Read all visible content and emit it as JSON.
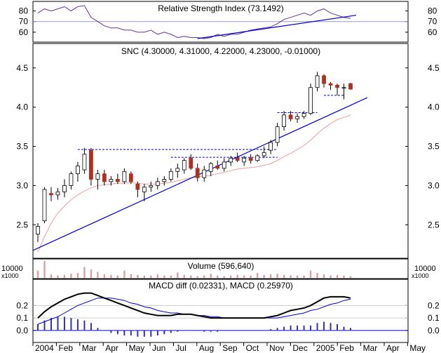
{
  "chart_data": {
    "type": "candlestick",
    "months": [
      "2004",
      "Feb",
      "Mar",
      "Apr",
      "May",
      "Jun",
      "Jul",
      "Aug",
      "Sep",
      "Oct",
      "Nov",
      "Dec",
      "2005",
      "Feb",
      "Mar",
      "Apr",
      "May"
    ],
    "price": {
      "title": "SNC (4.30000, 4.31000, 4.22000, 4.23000, -0.01000)",
      "ylim": [
        2.1,
        4.65
      ],
      "yticks": [
        2.5,
        3.0,
        3.5,
        4.0,
        4.5
      ],
      "ytick_labels": [
        "2.5",
        "3.0",
        "3.5",
        "4.0",
        "4.5"
      ],
      "candles": [
        [
          2.38,
          2.52,
          2.28,
          2.48
        ],
        [
          2.55,
          2.98,
          2.52,
          2.95
        ],
        [
          2.9,
          2.98,
          2.8,
          2.88
        ],
        [
          2.88,
          2.97,
          2.82,
          2.92
        ],
        [
          2.92,
          3.08,
          2.85,
          3.0
        ],
        [
          3.0,
          3.18,
          2.95,
          3.15
        ],
        [
          3.15,
          3.3,
          3.05,
          3.25
        ],
        [
          3.2,
          3.48,
          3.15,
          3.4
        ],
        [
          3.45,
          3.48,
          3.0,
          3.08
        ],
        [
          3.08,
          3.2,
          2.95,
          3.15
        ],
        [
          3.15,
          3.2,
          3.0,
          3.05
        ],
        [
          3.05,
          3.12,
          3.0,
          3.08
        ],
        [
          3.08,
          3.15,
          3.02,
          3.05
        ],
        [
          3.05,
          3.22,
          3.02,
          3.18
        ],
        [
          3.15,
          3.18,
          3.02,
          3.05
        ],
        [
          3.02,
          3.05,
          2.85,
          2.95
        ],
        [
          2.92,
          3.02,
          2.8,
          2.98
        ],
        [
          2.98,
          3.05,
          2.92,
          3.0
        ],
        [
          3.0,
          3.1,
          2.95,
          3.05
        ],
        [
          3.05,
          3.12,
          3.0,
          3.08
        ],
        [
          3.08,
          3.22,
          3.05,
          3.18
        ],
        [
          3.18,
          3.28,
          3.1,
          3.22
        ],
        [
          3.2,
          3.35,
          3.15,
          3.32
        ],
        [
          3.35,
          3.4,
          3.2,
          3.22
        ],
        [
          3.22,
          3.28,
          3.05,
          3.1
        ],
        [
          3.1,
          3.25,
          3.05,
          3.2
        ],
        [
          3.18,
          3.3,
          3.12,
          3.28
        ],
        [
          3.25,
          3.32,
          3.2,
          3.22
        ],
        [
          3.22,
          3.35,
          3.18,
          3.3
        ],
        [
          3.3,
          3.38,
          3.25,
          3.35
        ],
        [
          3.35,
          3.42,
          3.3,
          3.32
        ],
        [
          3.3,
          3.38,
          3.25,
          3.35
        ],
        [
          3.35,
          3.4,
          3.28,
          3.32
        ],
        [
          3.32,
          3.4,
          3.3,
          3.38
        ],
        [
          3.38,
          3.5,
          3.35,
          3.42
        ],
        [
          3.45,
          3.58,
          3.4,
          3.55
        ],
        [
          3.55,
          3.8,
          3.5,
          3.75
        ],
        [
          3.75,
          3.95,
          3.7,
          3.9
        ],
        [
          3.9,
          3.95,
          3.82,
          3.85
        ],
        [
          3.85,
          3.92,
          3.8,
          3.88
        ],
        [
          3.88,
          3.95,
          3.85,
          3.92
        ],
        [
          3.92,
          4.3,
          3.9,
          4.25
        ],
        [
          4.25,
          4.45,
          4.2,
          4.4
        ],
        [
          4.4,
          4.42,
          4.25,
          4.3
        ],
        [
          4.3,
          4.32,
          4.22,
          4.28
        ],
        [
          4.28,
          4.3,
          4.15,
          4.25
        ],
        [
          4.25,
          4.3,
          4.1,
          4.25
        ],
        [
          4.3,
          4.31,
          4.22,
          4.23
        ]
      ],
      "moving_average": [
        2.15,
        2.35,
        2.52,
        2.65,
        2.74,
        2.82,
        2.88,
        2.93,
        2.97,
        3.0,
        3.01,
        3.02,
        3.03,
        3.03,
        3.04,
        3.03,
        3.02,
        3.02,
        3.02,
        3.03,
        3.04,
        3.06,
        3.08,
        3.1,
        3.11,
        3.12,
        3.13,
        3.15,
        3.17,
        3.19,
        3.21,
        3.22,
        3.23,
        3.24,
        3.26,
        3.28,
        3.32,
        3.37,
        3.41,
        3.46,
        3.51,
        3.58,
        3.66,
        3.73,
        3.79,
        3.84,
        3.87,
        3.9
      ],
      "trendline": [
        [
          0,
          2.2
        ],
        [
          47,
          4.05
        ]
      ],
      "resistance_lines": [
        {
          "from": 6,
          "to": 36,
          "level": 3.46
        },
        {
          "from": 20,
          "to": 36,
          "level": 3.36
        },
        {
          "from": 36,
          "to": 42,
          "level": 3.93
        },
        {
          "from": 43,
          "to": 46,
          "level": 4.15
        }
      ]
    },
    "rsi": {
      "title": "Relative Strength Index (73.1492)",
      "ylim": [
        52,
        87
      ],
      "yticks": [
        60,
        70,
        80
      ],
      "ytick_labels": [
        "60",
        "70",
        "80"
      ],
      "reference_level": 70,
      "values": [
        78,
        82,
        80,
        82,
        84,
        80,
        84,
        85,
        74,
        70,
        66,
        64,
        64,
        62,
        62,
        60,
        60,
        62,
        58,
        60,
        58,
        55,
        56,
        55,
        55,
        54,
        55,
        58,
        56,
        58,
        58,
        60,
        62,
        63,
        64,
        65,
        68,
        72,
        74,
        76,
        78,
        76,
        80,
        82,
        78,
        76,
        74,
        73
      ],
      "trendline": [
        [
          24,
          54
        ],
        [
          47,
          76
        ]
      ]
    },
    "volume": {
      "title": "Volume (596,640)",
      "unit_label": "x1000",
      "tick_label": "10000",
      "values": [
        12,
        28,
        6,
        4,
        5,
        7,
        8,
        18,
        14,
        10,
        6,
        5,
        4,
        12,
        6,
        5,
        4,
        4,
        6,
        4,
        4,
        9,
        5,
        4,
        3,
        4,
        7,
        4,
        3,
        4,
        5,
        4,
        4,
        8,
        5,
        6,
        7,
        5,
        4,
        4,
        4,
        12,
        8,
        6,
        4,
        5,
        4,
        3
      ]
    },
    "macd": {
      "title": "MACD diff (0.02331), MACD (0.25970)",
      "ylim": [
        -0.04,
        0.32
      ],
      "yticks": [
        0.0,
        0.1,
        0.2
      ],
      "ytick_labels": [
        "0.0",
        "0.1",
        "0.2"
      ],
      "macd_line": [
        0.1,
        0.15,
        0.19,
        0.22,
        0.25,
        0.27,
        0.29,
        0.3,
        0.3,
        0.28,
        0.26,
        0.24,
        0.22,
        0.2,
        0.18,
        0.16,
        0.14,
        0.13,
        0.12,
        0.12,
        0.12,
        0.13,
        0.13,
        0.13,
        0.12,
        0.11,
        0.1,
        0.1,
        0.1,
        0.1,
        0.1,
        0.1,
        0.1,
        0.1,
        0.1,
        0.11,
        0.12,
        0.14,
        0.16,
        0.17,
        0.18,
        0.2,
        0.23,
        0.26,
        0.27,
        0.27,
        0.27,
        0.26
      ],
      "signal_line": [
        0.05,
        0.07,
        0.09,
        0.11,
        0.14,
        0.17,
        0.2,
        0.22,
        0.24,
        0.26,
        0.26,
        0.26,
        0.25,
        0.24,
        0.22,
        0.21,
        0.19,
        0.18,
        0.16,
        0.15,
        0.14,
        0.14,
        0.13,
        0.13,
        0.12,
        0.12,
        0.11,
        0.11,
        0.1,
        0.1,
        0.1,
        0.1,
        0.1,
        0.1,
        0.1,
        0.1,
        0.1,
        0.11,
        0.12,
        0.13,
        0.14,
        0.16,
        0.17,
        0.19,
        0.21,
        0.22,
        0.24,
        0.25
      ],
      "histogram": [
        0.05,
        0.08,
        0.1,
        0.11,
        0.11,
        0.1,
        0.09,
        0.08,
        0.06,
        0.02,
        0.0,
        -0.02,
        -0.03,
        -0.04,
        -0.04,
        -0.05,
        -0.05,
        -0.05,
        -0.04,
        -0.03,
        -0.02,
        -0.01,
        0.0,
        0.0,
        0.0,
        -0.01,
        -0.01,
        -0.01,
        0.0,
        0.0,
        0.0,
        0.0,
        0.0,
        0.0,
        0.0,
        0.01,
        0.02,
        0.03,
        0.04,
        0.04,
        0.04,
        0.04,
        0.06,
        0.07,
        0.06,
        0.05,
        0.03,
        0.02
      ]
    },
    "colors": {
      "up_candle": "#ffffff",
      "down_candle": "#b03020",
      "candle_outline": "#000000",
      "trendline": "#0000cc",
      "resistance": "#0000cc",
      "moving_average": "#e8a0a0",
      "rsi_line": "#663399",
      "volume_bar": "#d8a0a0",
      "macd_line": "#000000",
      "signal_line": "#0000cc",
      "histogram": "#3333aa",
      "reference": "#9999cc"
    }
  }
}
